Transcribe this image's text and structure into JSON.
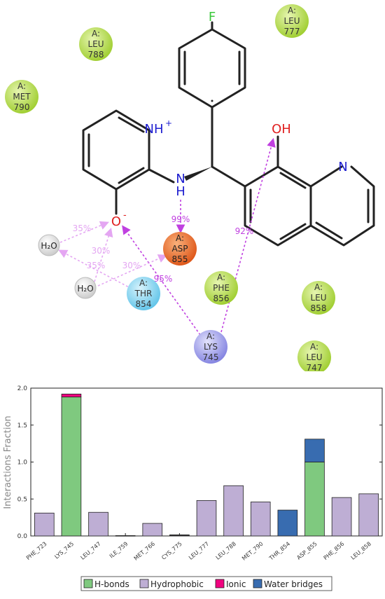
{
  "diagram": {
    "residues": [
      {
        "chain": "A:",
        "name": "LEU",
        "num": "777",
        "color": "#b6de42"
      },
      {
        "chain": "A:",
        "name": "LEU",
        "num": "788",
        "color": "#b6de42"
      },
      {
        "chain": "A:",
        "name": "MET",
        "num": "790",
        "color": "#b6de42"
      },
      {
        "chain": "A:",
        "name": "ASP",
        "num": "855",
        "color": "#e8652c"
      },
      {
        "chain": "A:",
        "name": "THR",
        "num": "854",
        "color": "#7fd3f0"
      },
      {
        "chain": "A:",
        "name": "PHE",
        "num": "856",
        "color": "#b6de42"
      },
      {
        "chain": "A:",
        "name": "LEU",
        "num": "858",
        "color": "#b6de42"
      },
      {
        "chain": "A:",
        "name": "LYS",
        "num": "745",
        "color": "#9d9de8"
      },
      {
        "chain": "A:",
        "name": "LEU",
        "num": "747",
        "color": "#b6de42"
      }
    ],
    "waters": [
      "H₂O",
      "H₂O"
    ],
    "atoms": {
      "fluorine": "F",
      "hydroxyl": "OH",
      "quinoline_n": "N",
      "pyridinium": "NH",
      "pyridinium_charge": "+",
      "amine": "N",
      "amine_h": "H",
      "oxide": "O",
      "oxide_charge": "-"
    },
    "interactions": [
      "99%",
      "92%",
      "95%",
      "35%",
      "30%",
      "35%",
      "30%"
    ]
  },
  "chart_data": {
    "type": "bar",
    "categories": [
      "PHE_723",
      "LYS_745",
      "LEU_747",
      "ILE_759",
      "MET_766",
      "CYS_775",
      "LEU_777",
      "LEU_788",
      "MET_790",
      "THR_854",
      "ASP_855",
      "PHE_856",
      "LEU_858"
    ],
    "series": [
      {
        "name": "H-bonds",
        "color": "#7fc97f",
        "values": [
          0,
          1.88,
          0,
          0,
          0,
          0,
          0,
          0,
          0,
          0,
          1.0,
          0,
          0
        ]
      },
      {
        "name": "Hydrophobic",
        "color": "#beaed4",
        "values": [
          0.31,
          0,
          0.32,
          0.005,
          0.17,
          0.01,
          0.48,
          0.68,
          0.46,
          0,
          0,
          0.52,
          0.57
        ]
      },
      {
        "name": "Ionic",
        "color": "#f0027f",
        "values": [
          0,
          0.04,
          0,
          0,
          0,
          0,
          0,
          0,
          0,
          0,
          0,
          0,
          0
        ]
      },
      {
        "name": "Water bridges",
        "color": "#386cb0",
        "values": [
          0,
          0,
          0,
          0,
          0,
          0.005,
          0,
          0,
          0,
          0.35,
          0.31,
          0,
          0
        ]
      }
    ],
    "ylabel": "Interactions Fraction",
    "ylim": [
      0,
      2.0
    ],
    "yticks": [
      "0.0",
      "0.5",
      "1.0",
      "1.5",
      "2.0"
    ],
    "legend_position": "bottom"
  }
}
